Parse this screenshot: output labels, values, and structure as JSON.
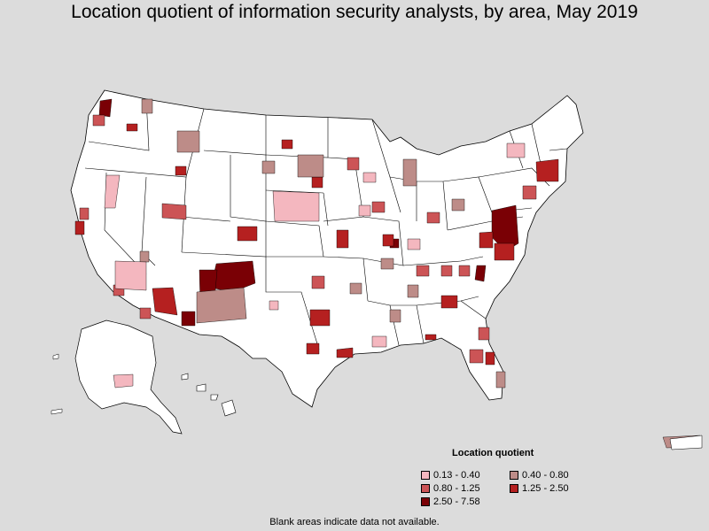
{
  "title": "Location quotient of information security analysts, by area, May 2019",
  "legend": {
    "title": "Location quotient",
    "items": [
      {
        "label": "0.13 - 0.40",
        "color": "#f4b7bf"
      },
      {
        "label": "0.40 - 0.80",
        "color": "#bd8c88"
      },
      {
        "label": "0.80 - 1.25",
        "color": "#cc5456"
      },
      {
        "label": "1.25 - 2.50",
        "color": "#b52020"
      },
      {
        "label": "2.50 - 7.58",
        "color": "#7a0005"
      }
    ]
  },
  "footnote": "Blank areas indicate data not available.",
  "colors": {
    "background": "#dcdcdc",
    "land": "#ffffff",
    "border": "#000000"
  }
}
